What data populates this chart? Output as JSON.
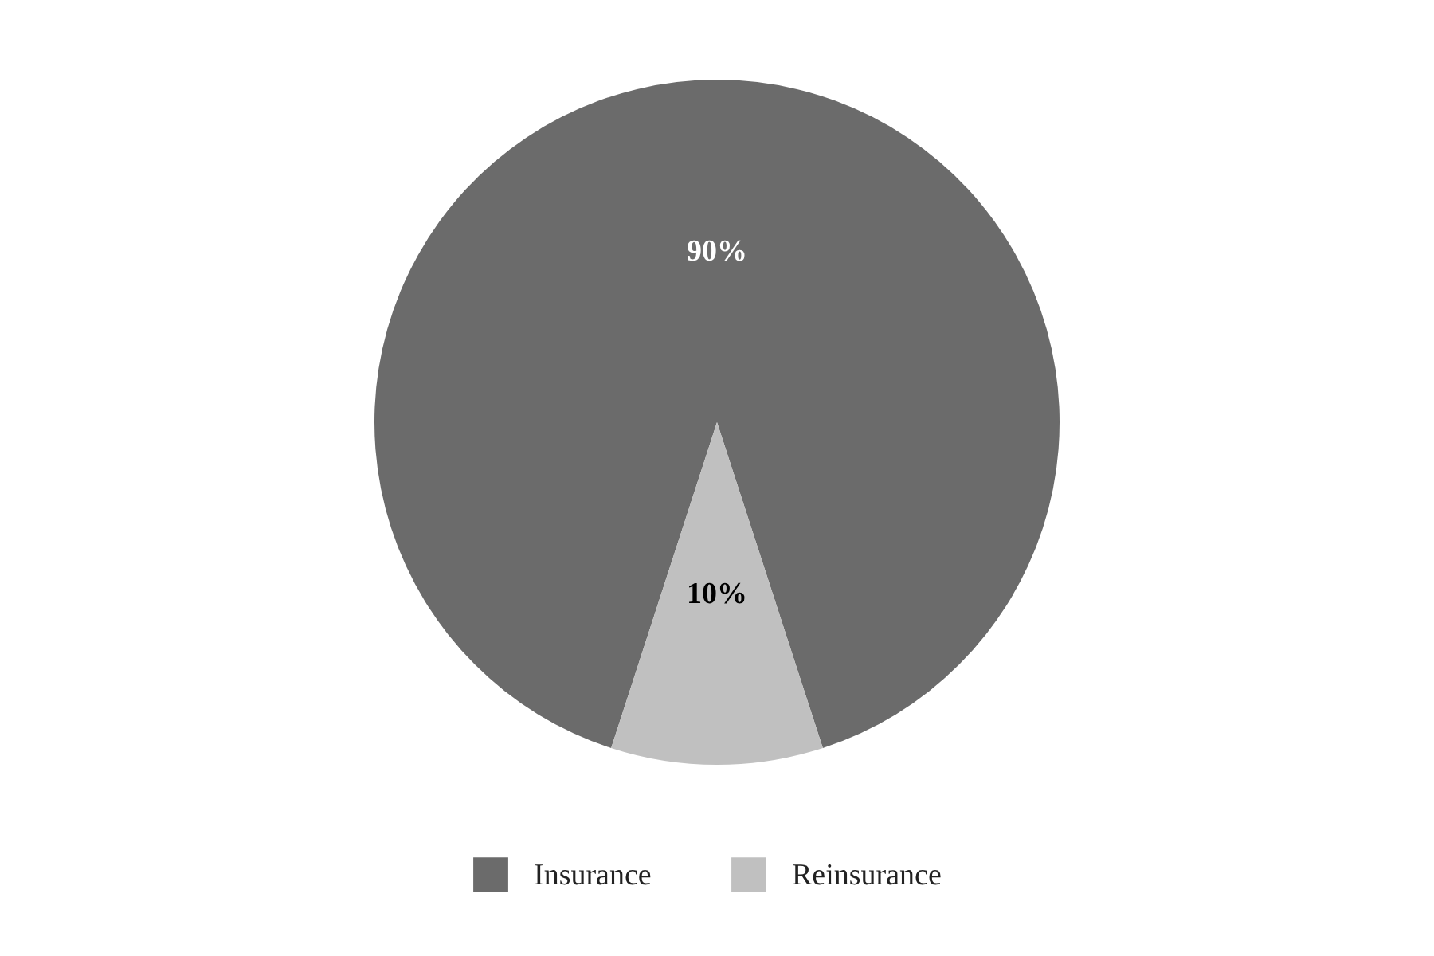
{
  "chart_data": {
    "type": "pie",
    "categories": [
      "Insurance",
      "Reinsurance"
    ],
    "values": [
      90,
      10
    ],
    "colors": [
      "#6b6b6b",
      "#c0c0c0"
    ],
    "value_labels": [
      "90%",
      "10%"
    ],
    "legend": "bottom"
  }
}
